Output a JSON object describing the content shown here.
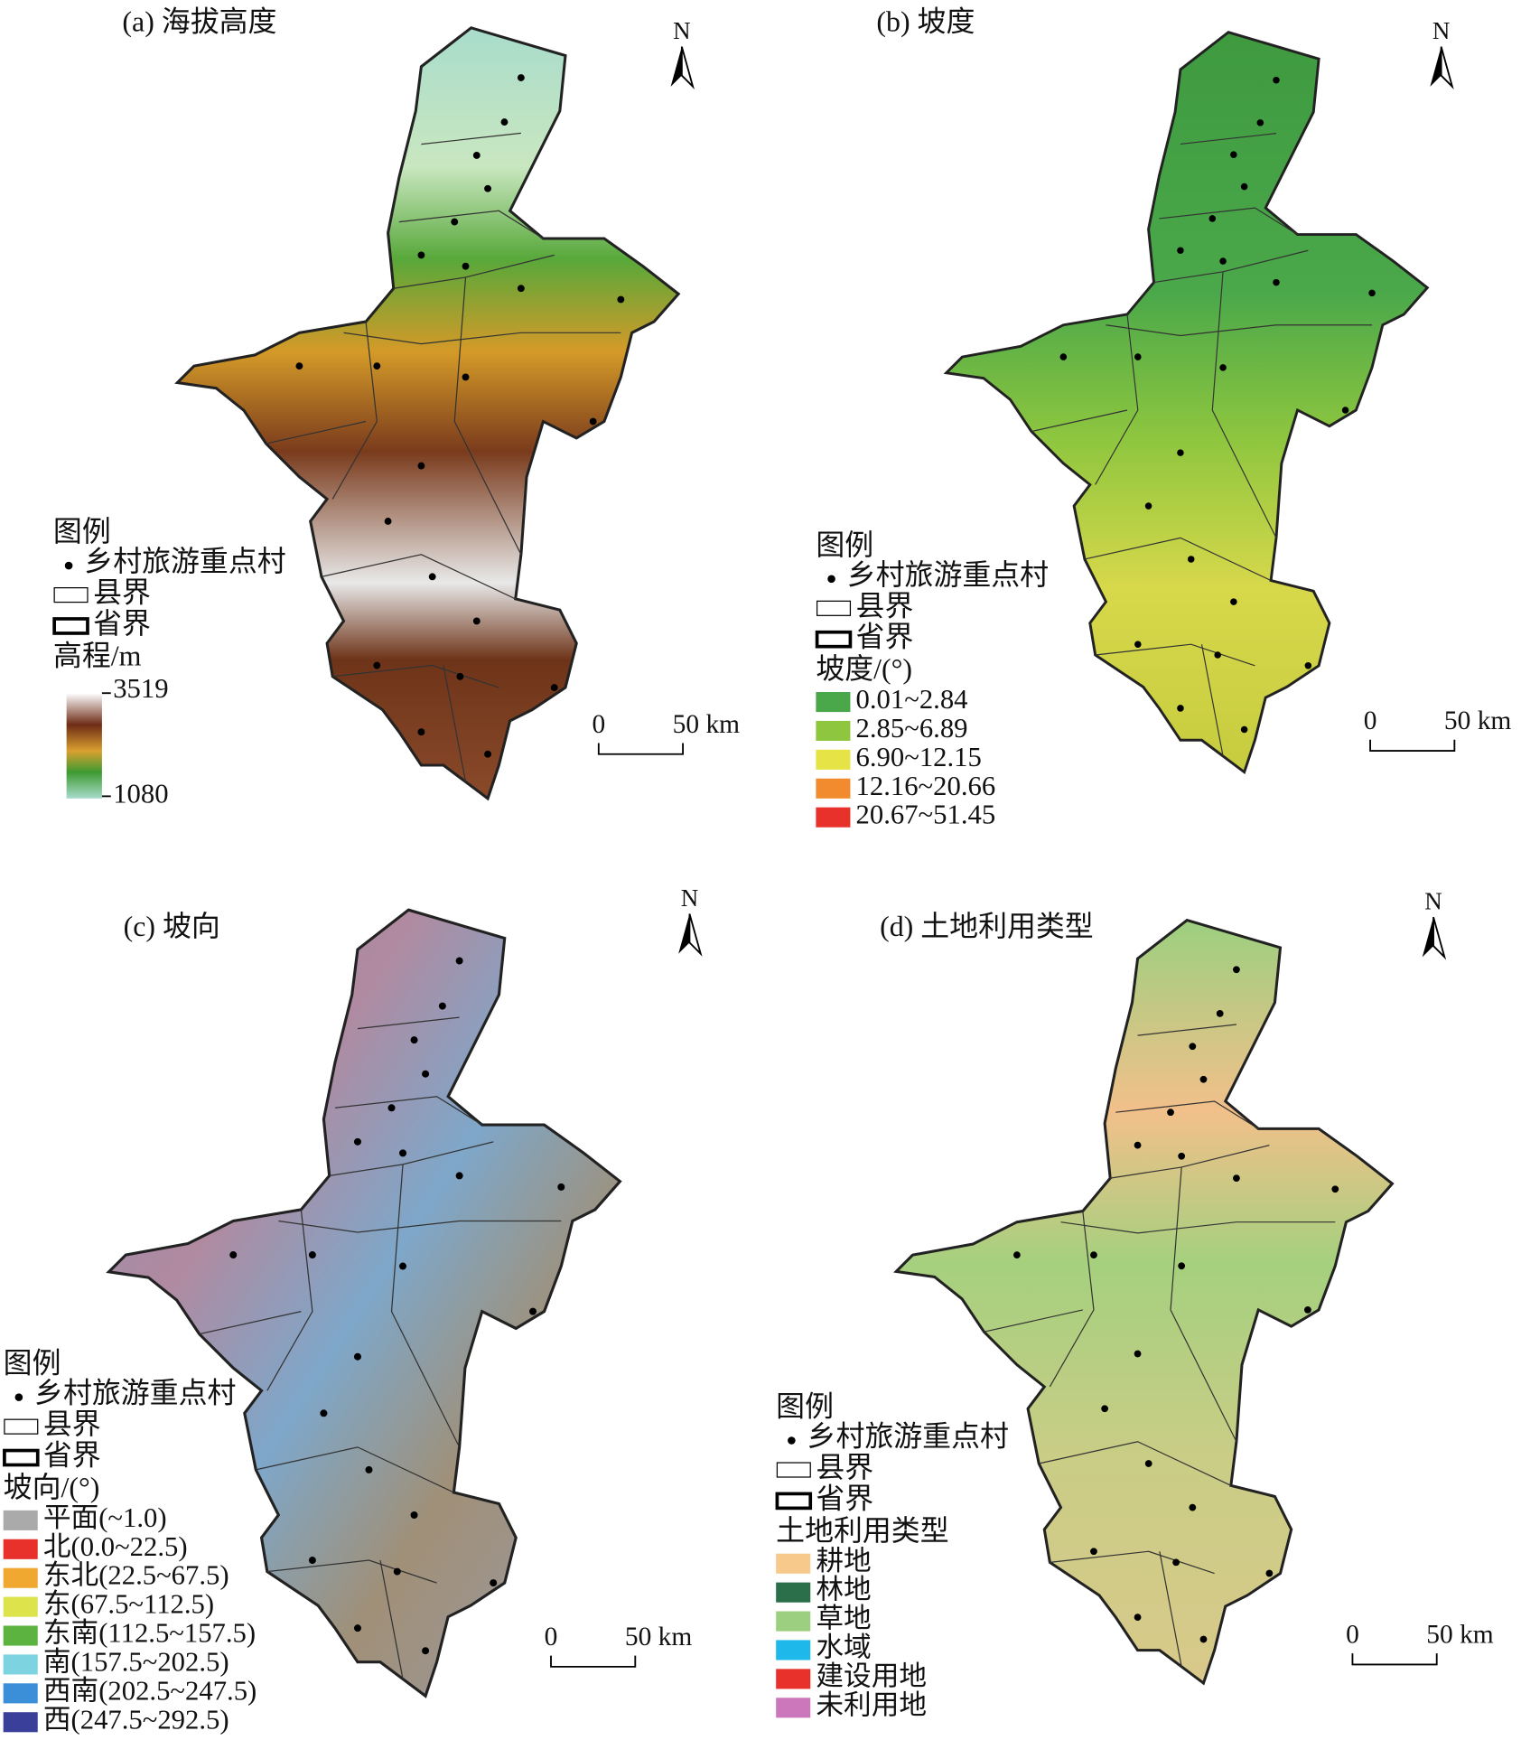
{
  "panels": [
    {
      "title": "(a) 海拔高度",
      "north": "N",
      "legend": {
        "title": "图例",
        "village": "乡村旅游重点村",
        "county": "县界",
        "province": "省界",
        "scale_title": "高程/m",
        "max": 3519,
        "min": 1080
      },
      "scale": {
        "zero": "0",
        "length": "50 km"
      }
    },
    {
      "title": "(b) 坡度",
      "north": "N",
      "legend": {
        "title": "图例",
        "village": "乡村旅游重点村",
        "county": "县界",
        "province": "省界",
        "scale_title": "坡度/(°)",
        "classes": [
          {
            "label": "0.01~2.84",
            "color": "#4aa84a"
          },
          {
            "label": "2.85~6.89",
            "color": "#8ec63f"
          },
          {
            "label": "6.90~12.15",
            "color": "#e5e345"
          },
          {
            "label": "12.16~20.66",
            "color": "#f28a2e"
          },
          {
            "label": "20.67~51.45",
            "color": "#e8312a"
          }
        ]
      },
      "scale": {
        "zero": "0",
        "length": "50 km"
      }
    },
    {
      "title": "(c) 坡向",
      "north": "N",
      "legend": {
        "title": "图例",
        "village": "乡村旅游重点村",
        "county": "县界",
        "province": "省界",
        "scale_title": "坡向/(°)",
        "classes": [
          {
            "label": "平面(~1.0)",
            "color": "#aaaaaa"
          },
          {
            "label": "北(0.0~22.5)",
            "color": "#e8312a"
          },
          {
            "label": "东北(22.5~67.5)",
            "color": "#f0a830"
          },
          {
            "label": "东(67.5~112.5)",
            "color": "#dde34a"
          },
          {
            "label": "东南(112.5~157.5)",
            "color": "#5db33f"
          },
          {
            "label": "南(157.5~202.5)",
            "color": "#7dd3e0"
          },
          {
            "label": "西南(202.5~247.5)",
            "color": "#3a8fd8"
          },
          {
            "label": "西(247.5~292.5)",
            "color": "#3a3f99"
          }
        ]
      },
      "scale": {
        "zero": "0",
        "length": "50 km"
      }
    },
    {
      "title": "(d) 土地利用类型",
      "north": "N",
      "legend": {
        "title": "图例",
        "village": "乡村旅游重点村",
        "county": "县界",
        "province": "省界",
        "scale_title": "土地利用类型",
        "classes": [
          {
            "label": "耕地",
            "color": "#f7c98b"
          },
          {
            "label": "林地",
            "color": "#2a6e4a"
          },
          {
            "label": "草地",
            "color": "#9ccf7f"
          },
          {
            "label": "水域",
            "color": "#1fb8ea"
          },
          {
            "label": "建设用地",
            "color": "#e8312a"
          },
          {
            "label": "未利用地",
            "color": "#cc77bb"
          }
        ]
      },
      "scale": {
        "zero": "0",
        "length": "50 km"
      }
    }
  ]
}
